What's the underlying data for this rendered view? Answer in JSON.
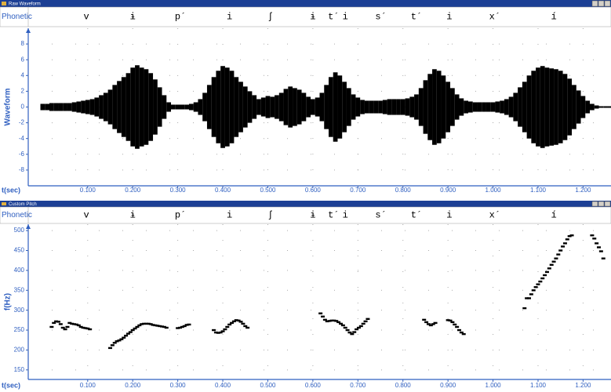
{
  "chart_data": [
    {
      "type": "waveform",
      "title": "Raw Waveform",
      "tier_label": "Phonetic",
      "phonetic": [
        "v",
        "ɨ",
        "p´",
        "i",
        "ʃ",
        "ɨ",
        "t´",
        "i",
        "s´",
        "t´",
        "i",
        "x´",
        "í"
      ],
      "y_label": "Waveform",
      "x_label": "t(sec)",
      "color": "#000000",
      "grid": true,
      "xlim": [
        -0.032,
        1.262
      ],
      "ylim": [
        -10,
        10
      ],
      "xticks": [
        {
          "value": 0.1,
          "label": "0.100"
        },
        {
          "value": 0.2,
          "label": "0.200"
        },
        {
          "value": 0.3,
          "label": "0.300"
        },
        {
          "value": 0.4,
          "label": "0.400"
        },
        {
          "value": 0.5,
          "label": "0.500"
        },
        {
          "value": 0.6,
          "label": "0.600"
        },
        {
          "value": 0.7,
          "label": "0.700"
        },
        {
          "value": 0.8,
          "label": "0.800"
        },
        {
          "value": 0.9,
          "label": "0.900"
        },
        {
          "value": 1.0,
          "label": "1.000"
        },
        {
          "value": 1.1,
          "label": "1.100"
        },
        {
          "value": 1.2,
          "label": "1.200"
        }
      ],
      "yticks": [
        -8,
        -6,
        -4,
        -2,
        0,
        2,
        4,
        6,
        8
      ],
      "x": [
        0,
        0.01,
        0.02,
        0.03,
        0.04,
        0.05,
        0.06,
        0.07,
        0.08,
        0.09,
        0.1,
        0.11,
        0.12,
        0.13,
        0.14,
        0.15,
        0.16,
        0.17,
        0.18,
        0.19,
        0.2,
        0.21,
        0.22,
        0.23,
        0.24,
        0.25,
        0.26,
        0.27,
        0.28,
        0.29,
        0.3,
        0.31,
        0.32,
        0.33,
        0.34,
        0.35,
        0.36,
        0.37,
        0.38,
        0.39,
        0.4,
        0.41,
        0.42,
        0.43,
        0.44,
        0.45,
        0.46,
        0.47,
        0.48,
        0.49,
        0.5,
        0.51,
        0.52,
        0.53,
        0.54,
        0.55,
        0.56,
        0.57,
        0.58,
        0.59,
        0.6,
        0.61,
        0.62,
        0.63,
        0.64,
        0.65,
        0.66,
        0.67,
        0.68,
        0.69,
        0.7,
        0.71,
        0.72,
        0.73,
        0.74,
        0.75,
        0.76,
        0.77,
        0.78,
        0.79,
        0.8,
        0.81,
        0.82,
        0.83,
        0.84,
        0.85,
        0.86,
        0.87,
        0.88,
        0.89,
        0.9,
        0.91,
        0.92,
        0.93,
        0.94,
        0.95,
        0.96,
        0.97,
        0.98,
        0.99,
        1.0,
        1.01,
        1.02,
        1.03,
        1.04,
        1.05,
        1.06,
        1.07,
        1.08,
        1.09,
        1.1,
        1.11,
        1.12,
        1.13,
        1.14,
        1.15,
        1.16,
        1.17,
        1.18,
        1.19,
        1.2,
        1.21,
        1.22,
        1.23,
        1.24,
        1.25,
        1.26
      ],
      "upper": [
        0.4,
        0.4,
        0.5,
        0.5,
        0.5,
        0.5,
        0.5,
        0.6,
        0.7,
        0.8,
        0.9,
        1,
        1.2,
        1.5,
        1.8,
        2.2,
        2.8,
        3.3,
        3.8,
        4.3,
        5,
        5.3,
        5,
        4.8,
        4.3,
        3.5,
        2.5,
        1.5,
        0.6,
        0.3,
        0.3,
        0.3,
        0.3,
        0.4,
        0.6,
        1,
        1.8,
        2.8,
        3.8,
        4.6,
        5.2,
        5,
        4.6,
        3.8,
        3.2,
        2.6,
        2,
        1.5,
        1,
        1.2,
        1.4,
        1.3,
        1.5,
        1.8,
        2.3,
        2.6,
        2.4,
        2.2,
        1.8,
        1.3,
        1,
        1.2,
        1.8,
        2.8,
        3.8,
        4.4,
        4,
        3.2,
        2.4,
        1.6,
        1.2,
        0.9,
        0.8,
        0.8,
        0.8,
        0.8,
        0.9,
        1,
        1,
        1,
        1,
        1.1,
        1.3,
        1.6,
        2.4,
        3.4,
        4.2,
        4.8,
        4.6,
        4,
        3.2,
        2.4,
        1.6,
        1.1,
        0.8,
        0.7,
        0.6,
        0.6,
        0.6,
        0.6,
        0.6,
        0.7,
        0.8,
        1,
        1.3,
        1.8,
        2.5,
        3.2,
        4,
        4.6,
        5,
        5.2,
        5,
        4.9,
        4.8,
        4.6,
        4.2,
        3.6,
        2.8,
        2.1,
        1.4,
        0.8,
        0.4,
        0.2,
        0.1,
        0.1,
        0.1
      ],
      "lower": [
        -0.4,
        -0.4,
        -0.5,
        -0.5,
        -0.5,
        -0.5,
        -0.5,
        -0.6,
        -0.7,
        -0.8,
        -0.9,
        -1,
        -1.2,
        -1.5,
        -1.8,
        -2.2,
        -2.8,
        -3.3,
        -3.8,
        -4.3,
        -5,
        -5.3,
        -5,
        -4.8,
        -4.3,
        -3.5,
        -2.5,
        -1.5,
        -0.6,
        -0.3,
        -0.3,
        -0.3,
        -0.3,
        -0.4,
        -0.6,
        -1,
        -1.8,
        -2.8,
        -3.8,
        -4.6,
        -5.2,
        -5,
        -4.6,
        -3.8,
        -3.2,
        -2.6,
        -2,
        -1.5,
        -1,
        -1.2,
        -1.4,
        -1.3,
        -1.5,
        -1.8,
        -2.3,
        -2.6,
        -2.4,
        -2.2,
        -1.8,
        -1.3,
        -1,
        -1.2,
        -1.8,
        -2.8,
        -3.8,
        -4.4,
        -4,
        -3.2,
        -2.4,
        -1.6,
        -1.2,
        -0.9,
        -0.8,
        -0.8,
        -0.8,
        -0.8,
        -0.9,
        -1,
        -1,
        -1,
        -1,
        -1.1,
        -1.3,
        -1.6,
        -2.4,
        -3.4,
        -4.2,
        -4.8,
        -4.6,
        -4,
        -3.2,
        -2.4,
        -1.6,
        -1.1,
        -0.8,
        -0.7,
        -0.6,
        -0.6,
        -0.6,
        -0.6,
        -0.6,
        -0.7,
        -0.8,
        -1,
        -1.3,
        -1.8,
        -2.5,
        -3.2,
        -4,
        -4.6,
        -5,
        -5.2,
        -5,
        -4.9,
        -4.8,
        -4.6,
        -4.2,
        -3.6,
        -2.8,
        -2.1,
        -1.4,
        -0.8,
        -0.4,
        -0.2,
        -0.1,
        -0.1,
        -0.1
      ]
    },
    {
      "type": "scatter",
      "title": "Custom Pitch",
      "tier_label": "Phonetic",
      "phonetic": [
        "v",
        "ɨ",
        "p´",
        "i",
        "ʃ",
        "ɨ",
        "t´",
        "i",
        "s´",
        "t´",
        "i",
        "x´",
        "í"
      ],
      "y_label": "f(Hz)",
      "x_label": "t(sec)",
      "color": "#000000",
      "grid": true,
      "xlim": [
        -0.032,
        1.262
      ],
      "ylim": [
        126,
        516
      ],
      "xticks": [
        {
          "value": 0.1,
          "label": "0.100"
        },
        {
          "value": 0.2,
          "label": "0.200"
        },
        {
          "value": 0.3,
          "label": "0.300"
        },
        {
          "value": 0.4,
          "label": "0.400"
        },
        {
          "value": 0.5,
          "label": "0.500"
        },
        {
          "value": 0.6,
          "label": "0.600"
        },
        {
          "value": 0.7,
          "label": "0.700"
        },
        {
          "value": 0.8,
          "label": "0.800"
        },
        {
          "value": 0.9,
          "label": "0.900"
        },
        {
          "value": 1.0,
          "label": "1.000"
        },
        {
          "value": 1.1,
          "label": "1.100"
        },
        {
          "value": 1.2,
          "label": "1.200"
        }
      ],
      "yticks": [
        150,
        200,
        250,
        300,
        350,
        400,
        450,
        500
      ],
      "x": [
        0.02,
        0.025,
        0.03,
        0.035,
        0.04,
        0.045,
        0.05,
        0.055,
        0.06,
        0.065,
        0.07,
        0.075,
        0.08,
        0.085,
        0.09,
        0.095,
        0.1,
        0.105,
        0.15,
        0.155,
        0.16,
        0.165,
        0.17,
        0.175,
        0.18,
        0.185,
        0.19,
        0.195,
        0.2,
        0.205,
        0.21,
        0.215,
        0.22,
        0.225,
        0.23,
        0.235,
        0.24,
        0.245,
        0.25,
        0.255,
        0.26,
        0.265,
        0.27,
        0.275,
        0.3,
        0.305,
        0.31,
        0.315,
        0.32,
        0.325,
        0.38,
        0.385,
        0.39,
        0.395,
        0.4,
        0.405,
        0.41,
        0.415,
        0.42,
        0.425,
        0.43,
        0.435,
        0.44,
        0.445,
        0.45,
        0.455,
        0.617,
        0.622,
        0.627,
        0.632,
        0.637,
        0.642,
        0.647,
        0.652,
        0.657,
        0.662,
        0.667,
        0.672,
        0.677,
        0.682,
        0.687,
        0.692,
        0.697,
        0.702,
        0.707,
        0.712,
        0.717,
        0.722,
        0.847,
        0.852,
        0.857,
        0.862,
        0.867,
        0.872,
        0.9,
        0.905,
        0.91,
        0.915,
        0.92,
        0.925,
        0.93,
        0.935,
        1.07,
        1.075,
        1.08,
        1.085,
        1.09,
        1.095,
        1.1,
        1.105,
        1.11,
        1.115,
        1.12,
        1.125,
        1.13,
        1.135,
        1.14,
        1.145,
        1.15,
        1.155,
        1.16,
        1.165,
        1.17,
        1.175,
        1.22,
        1.225,
        1.23,
        1.235,
        1.24,
        1.245
      ],
      "values": [
        258,
        268,
        272,
        271,
        265,
        256,
        252,
        258,
        268,
        266,
        265,
        264,
        262,
        258,
        256,
        255,
        254,
        252,
        205,
        212,
        218,
        222,
        224,
        227,
        231,
        236,
        241,
        245,
        250,
        254,
        258,
        262,
        265,
        266,
        266,
        266,
        265,
        263,
        262,
        261,
        260,
        259,
        258,
        256,
        255,
        256,
        258,
        260,
        263,
        264,
        250,
        244,
        243,
        244,
        247,
        252,
        258,
        264,
        268,
        272,
        275,
        274,
        271,
        266,
        260,
        256,
        292,
        284,
        276,
        272,
        273,
        274,
        274,
        273,
        270,
        266,
        262,
        256,
        250,
        244,
        240,
        245,
        252,
        256,
        260,
        266,
        272,
        278,
        276,
        270,
        265,
        262,
        265,
        268,
        275,
        274,
        270,
        264,
        258,
        250,
        244,
        240,
        305,
        330,
        330,
        340,
        350,
        358,
        365,
        372,
        380,
        388,
        396,
        405,
        414,
        422,
        430,
        440,
        450,
        460,
        468,
        478,
        486,
        488,
        488,
        480,
        468,
        458,
        448,
        430
      ]
    }
  ]
}
